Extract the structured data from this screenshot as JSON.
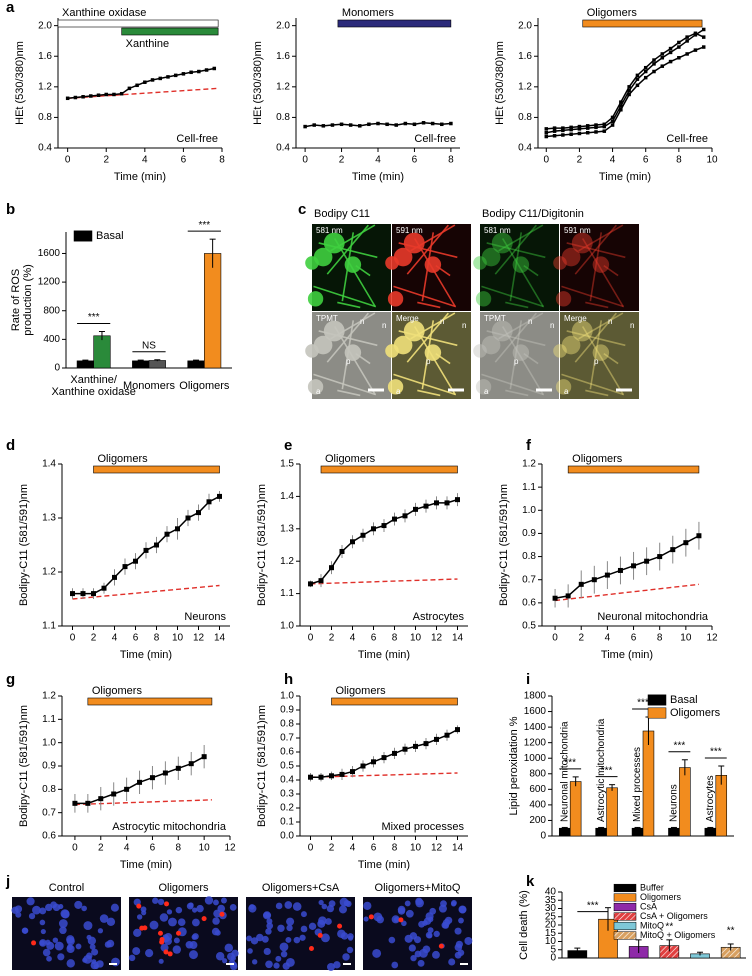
{
  "panel_letters": [
    "a",
    "b",
    "c",
    "d",
    "e",
    "f",
    "g",
    "h",
    "i",
    "j",
    "k"
  ],
  "chart_data": [
    {
      "type": "line",
      "ylabel": "HEt (530/380)nm",
      "xlabel": "Time (min)",
      "annotation": "Cell-free",
      "xlim": [
        -0.5,
        8
      ],
      "xticks": [
        0,
        2,
        4,
        6,
        8
      ],
      "ylim": [
        0.4,
        2.1
      ],
      "yticks": [
        0.4,
        0.8,
        1.2,
        1.6,
        {
          "value": 2.0,
          "label": "2.0"
        }
      ],
      "bars": [
        {
          "label": "Xanthine oxidase",
          "color": "#ffffff",
          "start": -0.5,
          "end": 7.8
        },
        {
          "label": "Xanthine",
          "color": "#2a8a3a",
          "start": 2.8,
          "end": 7.8
        }
      ],
      "x": [
        0,
        0.4,
        0.8,
        1.2,
        1.6,
        2.0,
        2.4,
        2.8,
        3.2,
        3.6,
        4.0,
        4.4,
        4.8,
        5.2,
        5.6,
        6.0,
        6.4,
        6.8,
        7.2,
        7.6
      ],
      "series": [
        {
          "color": "#000000",
          "values": [
            1.05,
            1.06,
            1.07,
            1.08,
            1.09,
            1.1,
            1.1,
            1.11,
            1.18,
            1.22,
            1.26,
            1.29,
            1.31,
            1.33,
            1.35,
            1.37,
            1.39,
            1.4,
            1.42,
            1.44
          ]
        }
      ],
      "baseline": {
        "color": "#e0302a",
        "x": [
          0,
          7.8
        ],
        "values": [
          1.05,
          1.18
        ]
      }
    },
    {
      "type": "line",
      "ylabel": "HEt (530/380)nm",
      "xlabel": "Time (min)",
      "annotation": "Cell-free",
      "xlim": [
        -0.5,
        8.5
      ],
      "xticks": [
        0,
        2,
        4,
        6,
        8
      ],
      "ylim": [
        0.4,
        2.1
      ],
      "yticks": [
        0.4,
        0.8,
        1.2,
        1.6,
        {
          "value": 2.0,
          "label": "2.0"
        }
      ],
      "bars": [
        {
          "label": "Monomers",
          "color": "#2b2a7a",
          "start": 1.8,
          "end": 8
        }
      ],
      "x": [
        0,
        0.5,
        1.0,
        1.5,
        2.0,
        2.5,
        3.0,
        3.5,
        4.0,
        4.5,
        5.0,
        5.5,
        6.0,
        6.5,
        7.0,
        7.5,
        8.0
      ],
      "series": [
        {
          "color": "#000000",
          "values": [
            0.68,
            0.7,
            0.69,
            0.7,
            0.71,
            0.7,
            0.69,
            0.71,
            0.72,
            0.71,
            0.7,
            0.72,
            0.71,
            0.73,
            0.72,
            0.71,
            0.72
          ]
        }
      ]
    },
    {
      "type": "line",
      "ylabel": "HEt (530/380)nm",
      "xlabel": "Time (min)",
      "annotation": "Cell-free",
      "xlim": [
        -0.5,
        10
      ],
      "xticks": [
        0,
        2,
        4,
        6,
        8,
        10
      ],
      "ylim": [
        0.4,
        2.1
      ],
      "yticks": [
        0.4,
        0.8,
        1.2,
        1.6,
        {
          "value": 2.0,
          "label": "2.0"
        }
      ],
      "bars": [
        {
          "label": "Oligomers",
          "color": "#f28c1e",
          "start": 2.2,
          "end": 9.4
        }
      ],
      "x": [
        0,
        0.5,
        1.0,
        1.5,
        2.0,
        2.5,
        3.0,
        3.5,
        4.0,
        4.5,
        5.0,
        5.5,
        6.0,
        6.5,
        7.0,
        7.5,
        8.0,
        8.5,
        9.0,
        9.5
      ],
      "series": [
        {
          "color": "#000000",
          "values": [
            0.6,
            0.62,
            0.63,
            0.64,
            0.65,
            0.66,
            0.67,
            0.68,
            0.75,
            0.95,
            1.15,
            1.3,
            1.4,
            1.5,
            1.58,
            1.65,
            1.72,
            1.8,
            1.88,
            1.95
          ]
        },
        {
          "color": "#000000",
          "values": [
            0.55,
            0.56,
            0.57,
            0.58,
            0.59,
            0.6,
            0.61,
            0.62,
            0.7,
            0.9,
            1.1,
            1.22,
            1.32,
            1.4,
            1.47,
            1.53,
            1.58,
            1.63,
            1.68,
            1.72
          ]
        },
        {
          "color": "#000000",
          "values": [
            0.65,
            0.66,
            0.66,
            0.67,
            0.68,
            0.69,
            0.7,
            0.71,
            0.8,
            1.0,
            1.2,
            1.35,
            1.45,
            1.55,
            1.63,
            1.7,
            1.78,
            1.85,
            1.9,
            1.85
          ]
        }
      ]
    },
    {
      "type": "bar",
      "ylabel": "Rate of ROS\nproduction (%)",
      "legend": "upper left",
      "categories": [
        "Xanthine/\nXanthine oxidase",
        "Monomers",
        "Oligomers"
      ],
      "ylim": [
        0,
        1900
      ],
      "yticks": [
        0,
        400,
        800,
        1200,
        1600
      ],
      "series": [
        {
          "name": "Basal",
          "color": "#000000",
          "values": [
            100,
            100,
            100
          ],
          "errors": [
            10,
            10,
            10
          ]
        },
        {
          "colors": [
            "#2a8a3a",
            "#555555",
            "#f28c1e"
          ],
          "values": [
            450,
            105,
            1600
          ],
          "errors": [
            60,
            10,
            200
          ]
        }
      ],
      "significance": [
        {
          "label": "***",
          "category": 0
        },
        {
          "label": "NS",
          "category": 1
        },
        {
          "label": "***",
          "category": 2
        }
      ]
    },
    {
      "type": "line",
      "ylabel": "Bodipy-C11 (581/591)nm",
      "xlabel": "Time (min)",
      "annotation": "Neurons",
      "xlim": [
        -1,
        15
      ],
      "xticks": [
        0,
        2,
        4,
        6,
        8,
        10,
        12,
        14
      ],
      "ylim": [
        1.1,
        1.4
      ],
      "yticks": [
        1.1,
        1.2,
        1.3,
        1.4
      ],
      "bars": [
        {
          "label": "Oligomers",
          "color": "#f28c1e",
          "start": 2,
          "end": 14
        }
      ],
      "x": [
        0,
        1,
        2,
        3,
        4,
        5,
        6,
        7,
        8,
        9,
        10,
        11,
        12,
        13,
        14
      ],
      "series": [
        {
          "color": "#000000",
          "values": [
            1.16,
            1.16,
            1.16,
            1.17,
            1.19,
            1.21,
            1.22,
            1.24,
            1.25,
            1.27,
            1.28,
            1.3,
            1.31,
            1.33,
            1.34
          ],
          "errors": [
            0.01,
            0.01,
            0.01,
            0.01,
            0.015,
            0.015,
            0.015,
            0.015,
            0.015,
            0.015,
            0.02,
            0.015,
            0.015,
            0.015,
            0.01
          ]
        }
      ],
      "baseline": {
        "color": "#e0302a",
        "x": [
          0,
          14
        ],
        "values": [
          1.15,
          1.175
        ]
      }
    },
    {
      "type": "line",
      "ylabel": "Bodipy-C11 (581/591)nm",
      "xlabel": "Time (min)",
      "annotation": "Astrocytes",
      "xlim": [
        -1,
        15
      ],
      "xticks": [
        0,
        2,
        4,
        6,
        8,
        10,
        12,
        14
      ],
      "ylim": [
        1.0,
        1.5
      ],
      "yticks": [
        {
          "value": 1.0,
          "label": "1.0"
        },
        1.1,
        1.2,
        1.3,
        1.4,
        1.5
      ],
      "bars": [
        {
          "label": "Oligomers",
          "color": "#f28c1e",
          "start": 1,
          "end": 14
        }
      ],
      "x": [
        0,
        1,
        2,
        3,
        4,
        5,
        6,
        7,
        8,
        9,
        10,
        11,
        12,
        13,
        14
      ],
      "series": [
        {
          "color": "#000000",
          "values": [
            1.13,
            1.14,
            1.18,
            1.23,
            1.26,
            1.28,
            1.3,
            1.31,
            1.33,
            1.34,
            1.36,
            1.37,
            1.38,
            1.38,
            1.39
          ],
          "errors": [
            0.01,
            0.02,
            0.02,
            0.02,
            0.02,
            0.02,
            0.02,
            0.02,
            0.02,
            0.02,
            0.02,
            0.02,
            0.02,
            0.02,
            0.02
          ]
        }
      ],
      "baseline": {
        "color": "#e0302a",
        "x": [
          0,
          14
        ],
        "values": [
          1.13,
          1.145
        ]
      }
    },
    {
      "type": "line",
      "ylabel": "Bodipy-C11 (581/591)nm",
      "xlabel": "Time (min)",
      "annotation": "Neuronal mitochondria",
      "xlim": [
        -1,
        12
      ],
      "xticks": [
        0,
        2,
        4,
        6,
        8,
        10,
        12
      ],
      "ylim": [
        0.5,
        1.2
      ],
      "yticks": [
        0.5,
        0.6,
        0.7,
        0.8,
        0.9,
        {
          "value": 1.0,
          "label": "1.0"
        },
        1.1,
        1.2
      ],
      "bars": [
        {
          "label": "Oligomers",
          "color": "#f28c1e",
          "start": 1,
          "end": 11
        }
      ],
      "x": [
        0,
        1,
        2,
        3,
        4,
        5,
        6,
        7,
        8,
        9,
        10,
        11
      ],
      "series": [
        {
          "color": "#000000",
          "values": [
            0.62,
            0.63,
            0.68,
            0.7,
            0.72,
            0.74,
            0.76,
            0.78,
            0.8,
            0.83,
            0.86,
            0.89
          ],
          "errors": [
            0.04,
            0.05,
            0.06,
            0.06,
            0.06,
            0.06,
            0.06,
            0.06,
            0.06,
            0.06,
            0.06,
            0.06
          ]
        }
      ],
      "baseline": {
        "color": "#e0302a",
        "x": [
          0,
          11
        ],
        "values": [
          0.61,
          0.68
        ]
      }
    },
    {
      "type": "line",
      "ylabel": "Bodipy-C11 (581/591)nm",
      "xlabel": "Time (min)",
      "annotation": "Astrocytic mitochondria",
      "xlim": [
        -1,
        12
      ],
      "xticks": [
        0,
        2,
        4,
        6,
        8,
        10,
        12
      ],
      "ylim": [
        0.6,
        1.2
      ],
      "yticks": [
        0.6,
        0.7,
        0.8,
        0.9,
        {
          "value": 1.0,
          "label": "1.0"
        },
        1.1,
        1.2
      ],
      "bars": [
        {
          "label": "Oligomers",
          "color": "#f28c1e",
          "start": 1,
          "end": 10.6
        }
      ],
      "x": [
        0,
        1,
        2,
        3,
        4,
        5,
        6,
        7,
        8,
        9,
        10
      ],
      "series": [
        {
          "color": "#000000",
          "values": [
            0.74,
            0.74,
            0.76,
            0.78,
            0.8,
            0.83,
            0.85,
            0.87,
            0.89,
            0.91,
            0.94
          ],
          "errors": [
            0.04,
            0.04,
            0.05,
            0.05,
            0.05,
            0.05,
            0.05,
            0.05,
            0.05,
            0.05,
            0.05
          ]
        }
      ],
      "baseline": {
        "color": "#e0302a",
        "x": [
          0,
          10.6
        ],
        "values": [
          0.735,
          0.755
        ]
      }
    },
    {
      "type": "line",
      "ylabel": "Bodipy-C11 (581/591)nm",
      "xlabel": "Time (min)",
      "annotation": "Mixed processes",
      "xlim": [
        -1,
        15
      ],
      "xticks": [
        0,
        2,
        4,
        6,
        8,
        10,
        12,
        14
      ],
      "ylim": [
        0,
        1.0
      ],
      "yticks": [
        {
          "value": 0,
          "label": "0.0"
        },
        0.1,
        0.2,
        0.3,
        0.4,
        0.5,
        0.6,
        0.7,
        0.8,
        0.9,
        {
          "value": 1.0,
          "label": "1.0"
        }
      ],
      "bars": [
        {
          "label": "Oligomers",
          "color": "#f28c1e",
          "start": 2,
          "end": 14
        }
      ],
      "x": [
        0,
        1,
        2,
        3,
        4,
        5,
        6,
        7,
        8,
        9,
        10,
        11,
        12,
        13,
        14
      ],
      "series": [
        {
          "color": "#000000",
          "values": [
            0.42,
            0.42,
            0.43,
            0.44,
            0.46,
            0.5,
            0.53,
            0.56,
            0.59,
            0.62,
            0.64,
            0.66,
            0.69,
            0.72,
            0.76
          ],
          "errors": [
            0.03,
            0.03,
            0.03,
            0.04,
            0.04,
            0.04,
            0.04,
            0.04,
            0.04,
            0.04,
            0.04,
            0.04,
            0.04,
            0.04,
            0.03
          ]
        }
      ],
      "baseline": {
        "color": "#e0302a",
        "x": [
          0,
          14
        ],
        "values": [
          0.42,
          0.45
        ]
      }
    },
    {
      "type": "bar",
      "ylabel": "Lipid peroxidation %",
      "legend": "upper right",
      "categories": [
        "Neuronal mitochondria",
        "Astrocytic mitochondria",
        "Mixed processes",
        "Neurons",
        "Astrocytes"
      ],
      "ylim": [
        0,
        1800
      ],
      "yticks": [
        0,
        200,
        400,
        600,
        800,
        1000,
        1200,
        1400,
        1600,
        1800
      ],
      "series": [
        {
          "name": "Basal",
          "color": "#000000",
          "values": [
            100,
            100,
            100,
            100,
            100
          ],
          "errors": [
            10,
            10,
            10,
            10,
            10
          ]
        },
        {
          "name": "Oligomers",
          "color": "#f28c1e",
          "values": [
            700,
            620,
            1350,
            880,
            780
          ],
          "errors": [
            60,
            40,
            180,
            100,
            120
          ]
        }
      ],
      "significance": [
        {
          "label": "***",
          "category": 0
        },
        {
          "label": "***",
          "category": 1
        },
        {
          "label": "***",
          "category": 2
        },
        {
          "label": "***",
          "category": 3
        },
        {
          "label": "***",
          "category": 4
        }
      ]
    },
    {
      "type": "bar",
      "ylabel": "Cell death (%)",
      "legend": "upper right",
      "categories": [
        "Buffer",
        "Oligomers",
        "CsA",
        "CsA + Oligomers",
        "MitoQ",
        "MitoQ + Oligomers"
      ],
      "colors": [
        "#000000",
        "#f28c1e",
        "#8e2aa8",
        "#e04040",
        "#7ec8d8",
        "#d8a060"
      ],
      "hatch": [
        false,
        false,
        false,
        true,
        false,
        true
      ],
      "values": [
        4.5,
        23.5,
        7,
        7.5,
        2.5,
        6.5
      ],
      "errors": [
        1.5,
        7,
        4,
        3.5,
        1,
        2
      ],
      "ylim": [
        0,
        40
      ],
      "yticks": [
        0,
        5,
        10,
        15,
        20,
        25,
        30,
        35,
        40
      ],
      "significance": [
        {
          "label": "***",
          "categories": [
            0,
            1
          ]
        },
        {
          "label": "**",
          "category": 3
        },
        {
          "label": "**",
          "category": 5
        }
      ]
    }
  ],
  "image_panels": {
    "c": {
      "titles": [
        "Bodipy C11",
        "Bodipy C11/Digitonin"
      ],
      "channel_labels": [
        "581 nm",
        "591 nm",
        "TPMT",
        "Merge"
      ],
      "markers": [
        "n",
        "p",
        "a"
      ]
    },
    "j": {
      "labels": [
        "Control",
        "Oligomers",
        "Oligomers+CsA",
        "Oligomers+MitoQ"
      ]
    }
  }
}
